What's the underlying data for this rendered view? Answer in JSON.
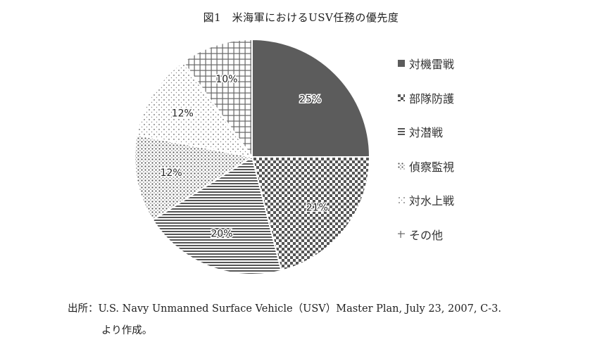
{
  "title": "図1　米海軍におけるUSV任務の優先度",
  "chart_data": {
    "type": "pie",
    "title": "図1　米海軍におけるUSV任務の優先度",
    "categories": [
      "対機雷戦",
      "部隊防護",
      "対潜戦",
      "偵察監視",
      "対水上戦",
      "その他"
    ],
    "values": [
      25,
      21,
      20,
      12,
      12,
      10
    ],
    "labels": [
      "25%",
      "21%",
      "20%",
      "12%",
      "12%",
      "10%"
    ],
    "patterns": [
      "solid-dark-gray",
      "checkerboard",
      "horizontal-lines",
      "dots",
      "sparse-dots",
      "grid"
    ],
    "legend_position": "right"
  },
  "source": {
    "line1": "出所：U.S. Navy Unmanned Surface Vehicle（USV）Master Plan, July 23, 2007, C-3.",
    "line2": "より作成。"
  }
}
